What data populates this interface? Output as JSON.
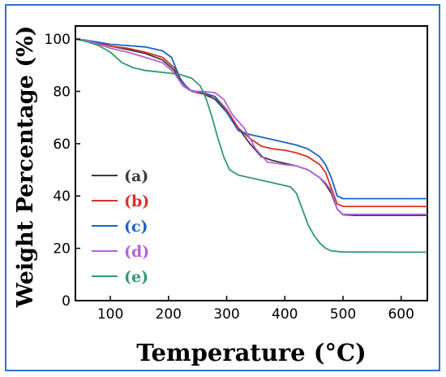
{
  "chart_data": {
    "type": "line",
    "xlabel": "Temperature (°C)",
    "ylabel": "Weight Percentage (%)",
    "xlim": [
      40,
      645
    ],
    "ylim": [
      0,
      105
    ],
    "xticks": [
      100,
      200,
      300,
      400,
      500,
      600
    ],
    "yticks": [
      0,
      20,
      40,
      60,
      80,
      100
    ],
    "grid": false,
    "legend_position": "lower-left",
    "series": [
      {
        "name": "(a)",
        "color": "#3a3a3a",
        "x": [
          40,
          60,
          80,
          100,
          130,
          160,
          190,
          210,
          225,
          240,
          260,
          280,
          300,
          320,
          340,
          360,
          380,
          400,
          420,
          440,
          460,
          470,
          480,
          490,
          500,
          520,
          560,
          600,
          645
        ],
        "y": [
          100,
          99.5,
          98.5,
          97.3,
          96,
          94.5,
          92,
          88,
          83,
          80,
          79,
          77,
          72,
          66,
          60,
          55,
          53.5,
          52.5,
          51.5,
          50,
          47,
          44.5,
          41,
          35,
          32.8,
          32.6,
          32.6,
          32.6,
          32.6
        ]
      },
      {
        "name": "(b)",
        "color": "#d9302b",
        "x": [
          40,
          60,
          80,
          100,
          130,
          160,
          190,
          210,
          225,
          240,
          260,
          280,
          300,
          320,
          340,
          360,
          380,
          400,
          420,
          440,
          460,
          470,
          480,
          490,
          500,
          520,
          560,
          600,
          645
        ],
        "y": [
          100,
          99.5,
          98.5,
          97.3,
          96.5,
          95,
          93,
          89,
          83,
          80,
          79,
          78,
          73,
          66,
          62,
          59,
          58,
          57.5,
          56.5,
          55,
          52,
          49,
          43,
          37,
          36,
          36,
          36,
          36,
          36
        ]
      },
      {
        "name": "(c)",
        "color": "#1a63c8",
        "x": [
          40,
          60,
          80,
          100,
          130,
          160,
          190,
          205,
          220,
          235,
          260,
          280,
          300,
          320,
          340,
          360,
          380,
          400,
          420,
          440,
          460,
          470,
          480,
          490,
          500,
          520,
          560,
          600,
          645
        ],
        "y": [
          100,
          99.5,
          98.8,
          98,
          97.5,
          97,
          95.5,
          93,
          85,
          80.5,
          79.5,
          78,
          72,
          65,
          63.5,
          62.5,
          61.5,
          60.5,
          59.5,
          58,
          55,
          52,
          47,
          40,
          39,
          39,
          39,
          39,
          39
        ]
      },
      {
        "name": "(d)",
        "color": "#b563d8",
        "x": [
          40,
          60,
          80,
          100,
          130,
          160,
          190,
          210,
          225,
          240,
          260,
          280,
          295,
          310,
          330,
          350,
          370,
          400,
          420,
          440,
          460,
          470,
          480,
          490,
          500,
          520,
          560,
          600,
          645
        ],
        "y": [
          100,
          99.5,
          98,
          96.5,
          95,
          93,
          91,
          87,
          82,
          80,
          80,
          79.5,
          77,
          71,
          66,
          58,
          53,
          52,
          51.5,
          50,
          47,
          45,
          42,
          35,
          33,
          33,
          33,
          33,
          33
        ]
      },
      {
        "name": "(e)",
        "color": "#2f9a6d",
        "x": [
          40,
          60,
          80,
          100,
          120,
          140,
          160,
          180,
          200,
          220,
          240,
          255,
          265,
          275,
          285,
          295,
          305,
          320,
          340,
          360,
          380,
          400,
          410,
          420,
          430,
          440,
          450,
          460,
          470,
          480,
          500,
          540,
          600,
          645
        ],
        "y": [
          100,
          99,
          97.5,
          95,
          91,
          89,
          88,
          87.5,
          87,
          86.5,
          85,
          82,
          77,
          70,
          62,
          55,
          50,
          48,
          47,
          46,
          45,
          44,
          43.5,
          41,
          35,
          29,
          25,
          22,
          20,
          19,
          18.6,
          18.6,
          18.5,
          18.5
        ]
      }
    ]
  }
}
